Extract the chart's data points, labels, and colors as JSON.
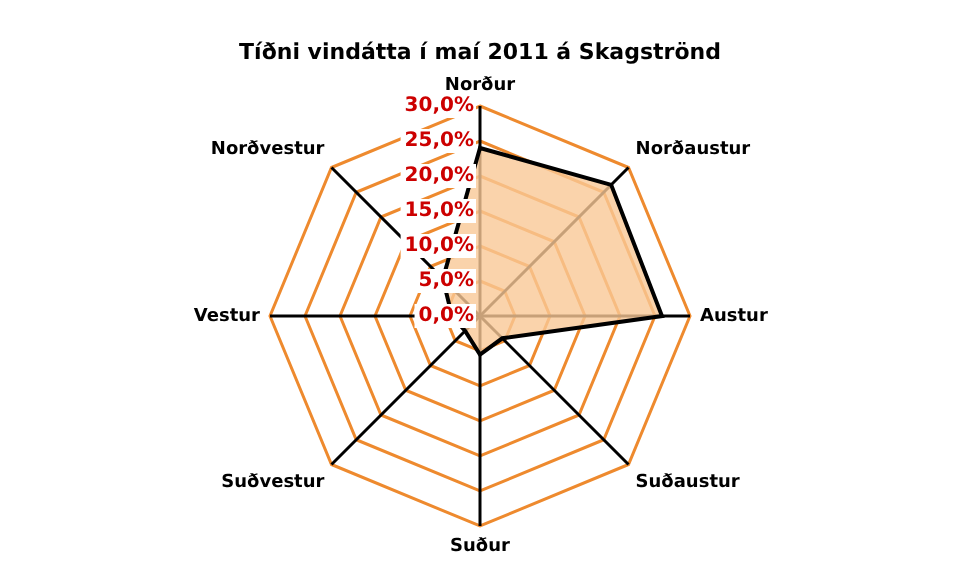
{
  "chart_data": {
    "type": "radar",
    "title": "Tíðni vindátta í maí 2011 á Skagströnd",
    "categories": [
      "Norður",
      "Norðaustur",
      "Austur",
      "Suðaustur",
      "Suður",
      "Suðvestur",
      "Vestur",
      "Norðvestur"
    ],
    "series": [
      {
        "color": "#000000",
        "values": [
          24,
          26.5,
          26,
          4.5,
          5.5,
          3,
          4,
          7.5
        ]
      }
    ],
    "ylim": [
      0,
      30
    ],
    "yticks": [
      {
        "value": 0,
        "label": "0,0%"
      },
      {
        "value": 5,
        "label": "5,0%"
      },
      {
        "value": 10,
        "label": "10,0%"
      },
      {
        "value": 15,
        "label": "15,0%"
      },
      {
        "value": 20,
        "label": "20,0%"
      },
      {
        "value": 25,
        "label": "25,0%"
      },
      {
        "value": 30,
        "label": "30,0%"
      }
    ],
    "grid": true,
    "legend": false
  }
}
